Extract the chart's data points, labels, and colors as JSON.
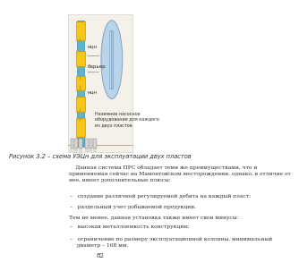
{
  "bg_color": "#ffffff",
  "page_bg": "#ffffff",
  "fig_bg": "#f5f0e8",
  "diagram": {
    "well_color": "#5ab4d6",
    "pump_color": "#f5c518",
    "circle_color": "#b8d4e8"
  },
  "caption": "Рисунок 3.2 – схема УЭЦн для эксплуатации двух пластов",
  "caption_fontsize": 4.8,
  "para1": "    Данная система ПРС обладает теми же преимуществами, что и\nприменяемая сейчас на Мамонтовском месторождении, однако, в отличие от\nнее, имеет дополнительные плюсы:",
  "bullets1": [
    "–   создание различной регулируемой дебита на каждый пласт;",
    "–   раздельный учет добываемой продукции."
  ],
  "mid_text": "Тем не менее, данная установка также имеет свои минусы:",
  "bullets2": [
    "–   высокая металлоемкость конструкции;",
    "–   ограничение по размеру эксплуатационной колонны, минимальный\n    диаметр – 168 мм."
  ],
  "page_num": "82",
  "text_color": "#2d2d2d",
  "label_ncn_top": "нцн",
  "label_barrier": "барьер",
  "label_ncn_bot": "нцн",
  "annot_text": "Наземное насосное\nоборудование для каждого\nиз двух пластов"
}
